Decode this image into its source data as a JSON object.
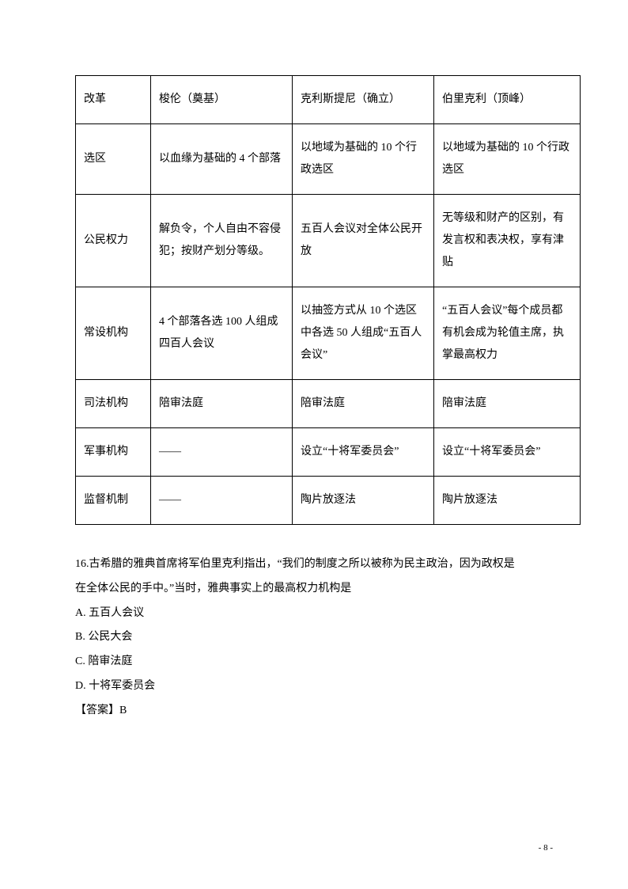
{
  "table": {
    "rows": [
      {
        "c1": "改革",
        "c2": "梭伦（奠基）",
        "c3": "克利斯提尼（确立）",
        "c4": "伯里克利（顶峰）"
      },
      {
        "c1": "选区",
        "c2": "以血缘为基础的 4 个部落",
        "c3": "以地域为基础的 10 个行政选区",
        "c4": "以地域为基础的 10 个行政选区"
      },
      {
        "c1": "公民权力",
        "c2": "解负令，个人自由不容侵犯；按财产划分等级。",
        "c3": "五百人会议对全体公民开放",
        "c4": "无等级和财产的区别，有发言权和表决权，享有津贴"
      },
      {
        "c1": "常设机构",
        "c2": "4 个部落各选 100 人组成四百人会议",
        "c3": "以抽签方式从 10 个选区中各选 50 人组成“五百人会议”",
        "c4": "“五百人会议”每个成员都有机会成为轮值主席，执掌最高权力"
      },
      {
        "c1": "司法机构",
        "c2": "陪审法庭",
        "c3": "陪审法庭",
        "c4": "陪审法庭"
      },
      {
        "c1": "军事机构",
        "c2": "——",
        "c3": "设立“十将军委员会”",
        "c4": "设立“十将军委员会”"
      },
      {
        "c1": "监督机制",
        "c2": "——",
        "c3": "陶片放逐法",
        "c4": "陶片放逐法"
      }
    ]
  },
  "question": {
    "stem1": "16.古希腊的雅典首席将军伯里克利指出，“我们的制度之所以被称为民主政治，因为政权是",
    "stem2": "在全体公民的手中。”当时，雅典事实上的最高权力机构是",
    "optA": "A.  五百人会议",
    "optB": "B.  公民大会",
    "optC": "C.  陪审法庭",
    "optD": "D.  十将军委员会",
    "answer": "【答案】B"
  },
  "pageNumber": "- 8 -"
}
